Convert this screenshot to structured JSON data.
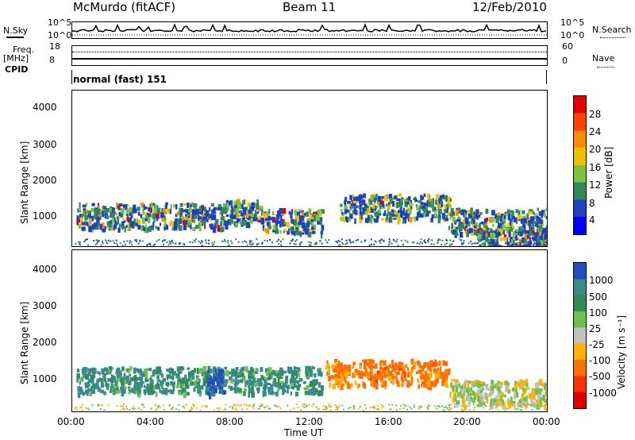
{
  "header": {
    "station": "McMurdo (fitACF)",
    "beam": "Beam 11",
    "date": "12/Feb/2010"
  },
  "noise": {
    "left_label": "N.Sky",
    "left_tick_top": "10^5",
    "left_tick_bot": "10^0",
    "right_label": "N.Search",
    "right_tick_top": "10^5",
    "right_tick_bot": "10^0"
  },
  "freq": {
    "label_line1": "Freq.",
    "label_line2": "[MHz]",
    "tick_top": "18",
    "tick_bot": "8",
    "right_label": "Nave",
    "right_tick_top": "60",
    "right_tick_bot": "0",
    "cpid_label": "CPID"
  },
  "cpid_text": "normal (fast) 151",
  "power_panel": {
    "ylabel": "Slant Range [km]",
    "yticks": [
      "4000",
      "3000",
      "2000",
      "1000"
    ],
    "cbar_label": "Power [dB]",
    "cbar_ticks": [
      "28",
      "24",
      "20",
      "16",
      "12",
      "8",
      "4"
    ],
    "cbar_colors": [
      "#e60000",
      "#ff4000",
      "#ff8c00",
      "#f0c000",
      "#80c040",
      "#2e8b57",
      "#2040c0",
      "#0000ff"
    ]
  },
  "velocity_panel": {
    "ylabel": "Slant Range [km]",
    "yticks": [
      "4000",
      "3000",
      "2000",
      "1000"
    ],
    "cbar_label": "Velocity [m s⁻¹]",
    "cbar_ticks": [
      "1000",
      "500",
      "100",
      "25",
      "-25",
      "-100",
      "-500",
      "-1000"
    ],
    "cbar_colors": [
      "#2050c0",
      "#3a8a8a",
      "#2e8b57",
      "#70c050",
      "#c0c0c0",
      "#ffb000",
      "#ff7000",
      "#ff3000",
      "#e00000"
    ]
  },
  "xaxis": {
    "ticks": [
      "00:00",
      "04:00",
      "08:00",
      "12:00",
      "16:00",
      "20:00",
      "00:00"
    ],
    "label": "Time UT"
  },
  "chart_data": [
    {
      "type": "heatmap",
      "title": "Power",
      "xlabel": "Time UT",
      "ylabel": "Slant Range [km]",
      "xlim": [
        "00:00",
        "24:00"
      ],
      "ylim": [
        180,
        4500
      ],
      "colorbar": {
        "label": "Power [dB]",
        "ticks": [
          4,
          8,
          12,
          16,
          20,
          24,
          28
        ]
      },
      "scatter_bands": [
        {
          "t_start": 0.2,
          "t_end": 7.6,
          "range_center": 1050,
          "peak_db": 24
        },
        {
          "t_start": 7.6,
          "t_end": 9.6,
          "range_center": 1150,
          "peak_db": 26
        },
        {
          "t_start": 9.6,
          "t_end": 12.6,
          "range_center": 900,
          "peak_db": 20
        },
        {
          "t_start": 13.5,
          "t_end": 19.0,
          "range_center": 1300,
          "peak_db": 26
        },
        {
          "t_start": 19.0,
          "t_end": 24.0,
          "range_center": 900,
          "peak_db": 12
        },
        {
          "t_start": 20.5,
          "t_end": 24.0,
          "range_center": 350,
          "peak_db": 28
        }
      ]
    },
    {
      "type": "heatmap",
      "title": "Velocity",
      "xlabel": "Time UT",
      "ylabel": "Slant Range [km]",
      "xlim": [
        "00:00",
        "24:00"
      ],
      "ylim": [
        180,
        4500
      ],
      "colorbar": {
        "label": "Velocity [m s-1]",
        "ticks": [
          1000,
          500,
          100,
          25,
          -25,
          -100,
          -500,
          -1000
        ]
      },
      "scatter_bands": [
        {
          "t_start": 0.2,
          "t_end": 12.6,
          "range_center": 1050,
          "velocity": 400
        },
        {
          "t_start": 6.8,
          "t_end": 7.6,
          "range_center": 1000,
          "velocity": 1000
        },
        {
          "t_start": 12.8,
          "t_end": 19.0,
          "range_center": 1250,
          "velocity": -400
        },
        {
          "t_start": 19.0,
          "t_end": 24.0,
          "range_center": 700,
          "velocity": 0
        }
      ]
    }
  ]
}
